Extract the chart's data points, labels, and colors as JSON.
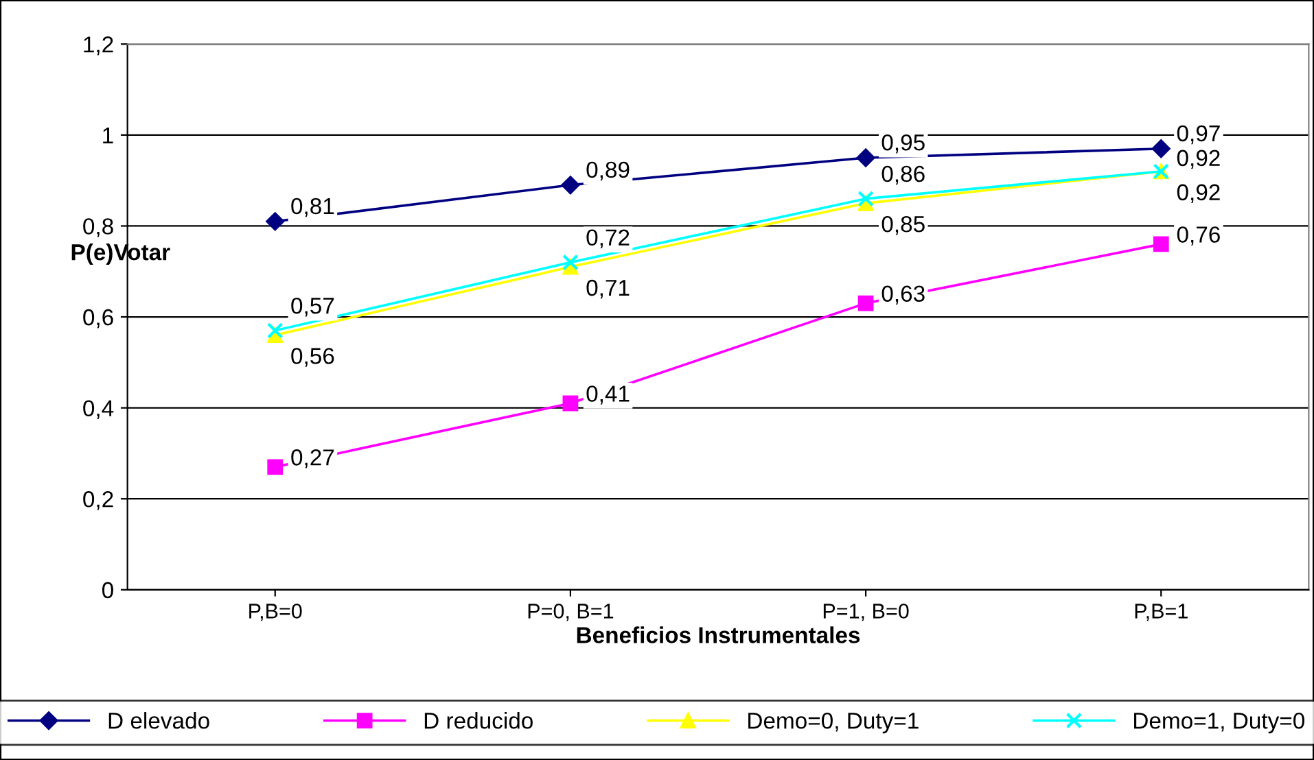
{
  "chart_data": {
    "type": "line",
    "xlabel": "Beneficios Instrumentales",
    "ylabel": "P(e)Votar",
    "categories": [
      "P,B=0",
      "P=0, B=1",
      "P=1, B=0",
      "P,B=1"
    ],
    "series": [
      {
        "name": "D elevado",
        "color": "#000080",
        "marker": "diamond",
        "values": [
          0.81,
          0.89,
          0.95,
          0.97
        ],
        "value_labels": [
          "0,81",
          "0,89",
          "0,95",
          "0,97"
        ]
      },
      {
        "name": "D reducido",
        "color": "#ff00ff",
        "marker": "square",
        "values": [
          0.27,
          0.41,
          0.63,
          0.76
        ],
        "value_labels": [
          "0,27",
          "0,41",
          "0,63",
          "0,76"
        ]
      },
      {
        "name": "Demo=0, Duty=1",
        "color": "#ffff00",
        "marker": "triangle",
        "values": [
          0.56,
          0.71,
          0.85,
          0.92
        ],
        "value_labels": [
          "0,56",
          "0,71",
          "0,85",
          "0,92"
        ]
      },
      {
        "name": "Demo=1, Duty=0",
        "color": "#00ffff",
        "marker": "cross",
        "values": [
          0.57,
          0.72,
          0.86,
          0.92
        ],
        "value_labels": [
          "0,57",
          "0,72",
          "0,86",
          "0,92"
        ]
      }
    ],
    "ylim": [
      0,
      1.2
    ],
    "yticks": [
      0,
      {
        "value": 0.2,
        "label": "0,2"
      },
      {
        "value": 0.4,
        "label": "0,4"
      },
      {
        "value": 0.6,
        "label": "0,6"
      },
      {
        "value": 0.8,
        "label": "0,8"
      },
      1,
      {
        "value": 1.2,
        "label": "1,2"
      }
    ],
    "grid": "y",
    "legend": "bottom",
    "line_style": "solid"
  }
}
